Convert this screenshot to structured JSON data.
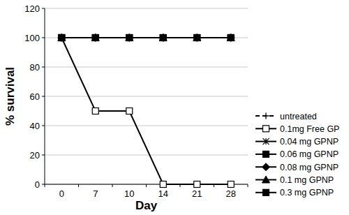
{
  "chart_data": {
    "type": "line",
    "x_label": "Day",
    "y_label": "% survival",
    "categories": [
      "0",
      "7",
      "10",
      "14",
      "21",
      "28"
    ],
    "ylim": [
      0,
      120
    ],
    "yticks": [
      0,
      20,
      40,
      60,
      80,
      100,
      120
    ],
    "grid": true,
    "legend": "right",
    "series": [
      {
        "name": "untreated",
        "color": "#000000",
        "marker": "plus",
        "line_style": "dashed",
        "values": [
          100,
          100,
          100,
          100,
          100,
          100
        ]
      },
      {
        "name": "0.1mg Free GP",
        "color": "#000000",
        "marker": "square-open",
        "line_style": "solid",
        "values": [
          100,
          50,
          50,
          0,
          0,
          0
        ]
      },
      {
        "name": "0.04 mg GPNP",
        "color": "#000000",
        "marker": "asterisk",
        "line_style": "solid",
        "values": [
          100,
          100,
          100,
          100,
          100,
          100
        ]
      },
      {
        "name": "0.06 mg GPNP",
        "color": "#000000",
        "marker": "square",
        "line_style": "solid",
        "values": [
          100,
          100,
          100,
          100,
          100,
          100
        ]
      },
      {
        "name": "0.08 mg GPNP",
        "color": "#000000",
        "marker": "diamond",
        "line_style": "solid",
        "values": [
          100,
          100,
          100,
          100,
          100,
          100
        ]
      },
      {
        "name": "0.1 mg GPNP",
        "color": "#000000",
        "marker": "triangle",
        "line_style": "solid",
        "values": [
          100,
          100,
          100,
          100,
          100,
          100
        ]
      },
      {
        "name": "0.3 mg GPNP",
        "color": "#000000",
        "marker": "square",
        "line_style": "solid",
        "values": [
          100,
          100,
          100,
          100,
          100,
          100
        ]
      }
    ]
  }
}
